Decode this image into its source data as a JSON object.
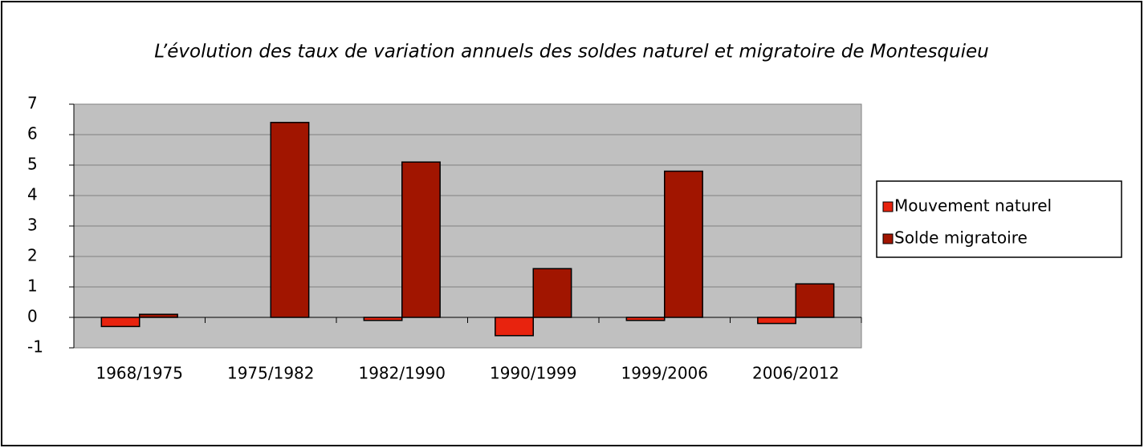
{
  "chart_data": {
    "type": "bar",
    "title": "L’évolution des taux de variation annuels des soldes naturel et migratoire de Montesquieu",
    "categories": [
      "1968/1975",
      "1975/1982",
      "1982/1990",
      "1990/1999",
      "1999/2006",
      "2006/2012"
    ],
    "series": [
      {
        "name": "Mouvement naturel",
        "color": "#e8230e",
        "values": [
          -0.3,
          0,
          -0.1,
          -0.6,
          -0.1,
          -0.2
        ]
      },
      {
        "name": "Solde migratoire",
        "color": "#a11500",
        "values": [
          0.1,
          6.4,
          5.1,
          1.6,
          4.8,
          1.1
        ]
      }
    ],
    "ylim": [
      -1,
      7
    ],
    "yticks": [
      -1,
      0,
      1,
      2,
      3,
      4,
      5,
      6,
      7
    ],
    "grid": true,
    "legend": "right"
  }
}
